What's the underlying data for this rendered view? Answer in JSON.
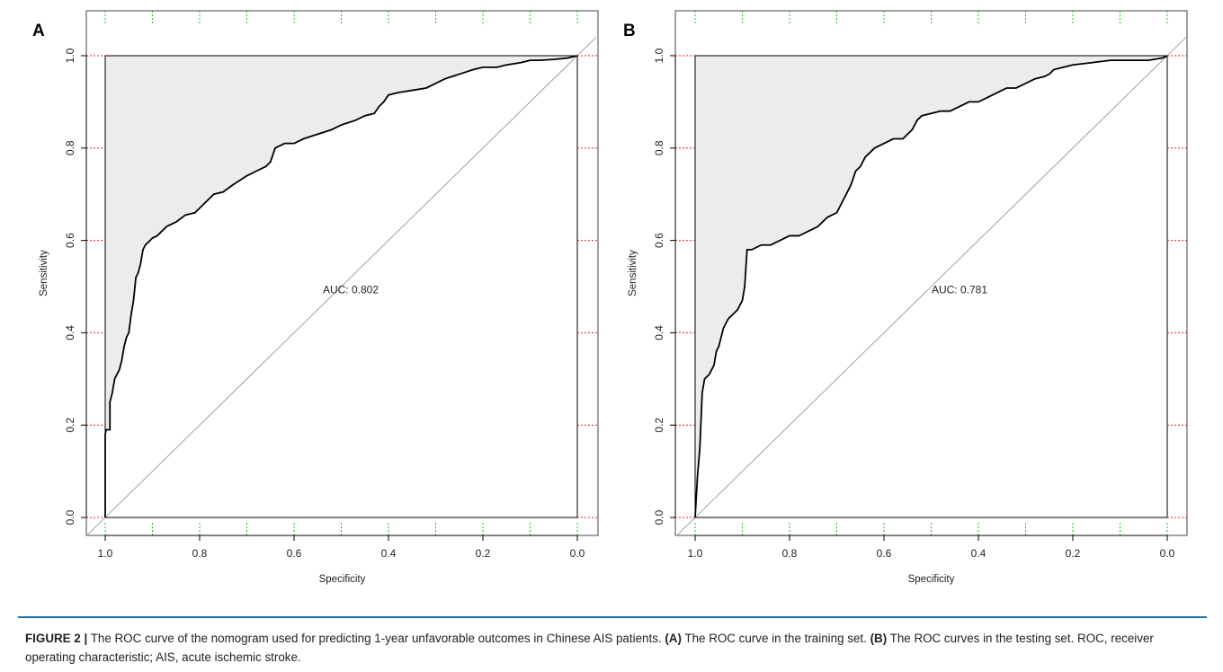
{
  "figure": {
    "caption": {
      "label": "FIGURE 2 |",
      "t1": " The ROC curve of the nomogram used for predicting 1-year unfavorable outcomes in Chinese AIS patients. ",
      "a_ref": "(A)",
      "t2": " The ROC curve in the training set. ",
      "b_ref": "(B)",
      "t3": " The ROC curves in the testing set. ROC, receiver operating characteristic; AIS, acute ischemic stroke."
    }
  },
  "colors": {
    "curve": "#000000",
    "shade": "#ececec",
    "diagonal": "#a0a0a0",
    "grid_x": "#22bb22",
    "grid_y": "#e02020",
    "caption_rule": "#1e6fa5"
  },
  "chart_data": [
    {
      "panel": "A",
      "type": "line",
      "xlabel": "Specificity",
      "ylabel": "Sensitivity",
      "xlim": [
        1.0,
        0.0
      ],
      "ylim": [
        0.0,
        1.0
      ],
      "x_ticks": [
        "1.0",
        "0.8",
        "0.6",
        "0.4",
        "0.2",
        "0.0"
      ],
      "y_ticks": [
        "0.0",
        "0.2",
        "0.4",
        "0.6",
        "0.8",
        "1.0"
      ],
      "annotation": "AUC: 0.802",
      "annotation_pos": [
        0.48,
        0.485
      ],
      "series": [
        {
          "x": [
            1.0,
            1.0,
            0.998,
            0.99,
            0.99,
            0.985,
            0.98,
            0.97,
            0.965,
            0.96,
            0.955,
            0.95,
            0.945,
            0.94,
            0.935,
            0.93,
            0.925,
            0.92,
            0.915,
            0.91,
            0.905,
            0.9,
            0.89,
            0.88,
            0.87,
            0.85,
            0.83,
            0.81,
            0.8,
            0.78,
            0.77,
            0.75,
            0.73,
            0.7,
            0.68,
            0.66,
            0.65,
            0.64,
            0.62,
            0.6,
            0.58,
            0.55,
            0.52,
            0.5,
            0.47,
            0.45,
            0.43,
            0.42,
            0.41,
            0.4,
            0.38,
            0.35,
            0.32,
            0.3,
            0.28,
            0.25,
            0.22,
            0.2,
            0.17,
            0.15,
            0.12,
            0.1,
            0.08,
            0.05,
            0.02,
            0.0
          ],
          "y": [
            0.0,
            0.18,
            0.19,
            0.19,
            0.25,
            0.27,
            0.3,
            0.32,
            0.34,
            0.37,
            0.39,
            0.4,
            0.44,
            0.47,
            0.52,
            0.53,
            0.55,
            0.58,
            0.59,
            0.595,
            0.6,
            0.605,
            0.61,
            0.62,
            0.63,
            0.64,
            0.655,
            0.66,
            0.67,
            0.69,
            0.7,
            0.705,
            0.72,
            0.74,
            0.75,
            0.76,
            0.77,
            0.8,
            0.81,
            0.81,
            0.82,
            0.83,
            0.84,
            0.85,
            0.86,
            0.87,
            0.875,
            0.89,
            0.9,
            0.915,
            0.92,
            0.925,
            0.93,
            0.94,
            0.95,
            0.96,
            0.97,
            0.975,
            0.975,
            0.98,
            0.985,
            0.99,
            0.99,
            0.992,
            0.995,
            1.0
          ]
        }
      ]
    },
    {
      "panel": "B",
      "type": "line",
      "xlabel": "Specificity",
      "ylabel": "Sensitivity",
      "xlim": [
        1.0,
        0.0
      ],
      "ylim": [
        0.0,
        1.0
      ],
      "x_ticks": [
        "1.0",
        "0.8",
        "0.6",
        "0.4",
        "0.2",
        "0.0"
      ],
      "y_ticks": [
        "0.0",
        "0.2",
        "0.4",
        "0.6",
        "0.8",
        "1.0"
      ],
      "annotation": "AUC: 0.781",
      "annotation_pos": [
        0.44,
        0.485
      ],
      "series": [
        {
          "x": [
            1.0,
            0.995,
            0.99,
            0.985,
            0.98,
            0.975,
            0.97,
            0.96,
            0.955,
            0.95,
            0.945,
            0.94,
            0.93,
            0.92,
            0.91,
            0.9,
            0.895,
            0.89,
            0.88,
            0.86,
            0.84,
            0.82,
            0.8,
            0.78,
            0.76,
            0.74,
            0.72,
            0.7,
            0.69,
            0.68,
            0.67,
            0.66,
            0.65,
            0.64,
            0.63,
            0.62,
            0.6,
            0.58,
            0.56,
            0.54,
            0.53,
            0.52,
            0.5,
            0.48,
            0.46,
            0.44,
            0.42,
            0.4,
            0.38,
            0.36,
            0.34,
            0.32,
            0.3,
            0.28,
            0.26,
            0.25,
            0.24,
            0.22,
            0.2,
            0.16,
            0.12,
            0.08,
            0.04,
            0.01,
            0.0
          ],
          "y": [
            0.0,
            0.09,
            0.15,
            0.27,
            0.3,
            0.305,
            0.31,
            0.33,
            0.36,
            0.37,
            0.39,
            0.41,
            0.43,
            0.44,
            0.45,
            0.47,
            0.5,
            0.58,
            0.58,
            0.59,
            0.59,
            0.6,
            0.61,
            0.61,
            0.62,
            0.63,
            0.65,
            0.66,
            0.68,
            0.7,
            0.72,
            0.75,
            0.76,
            0.78,
            0.79,
            0.8,
            0.81,
            0.82,
            0.82,
            0.84,
            0.86,
            0.87,
            0.875,
            0.88,
            0.88,
            0.89,
            0.9,
            0.9,
            0.91,
            0.92,
            0.93,
            0.93,
            0.94,
            0.95,
            0.955,
            0.96,
            0.97,
            0.975,
            0.98,
            0.985,
            0.99,
            0.99,
            0.99,
            0.995,
            1.0
          ]
        }
      ]
    }
  ]
}
